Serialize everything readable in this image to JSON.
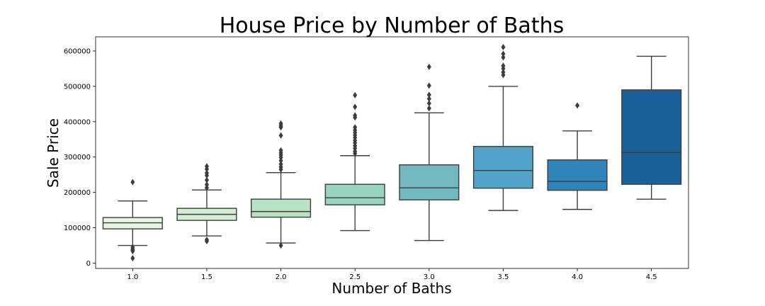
{
  "chart_data": {
    "type": "box",
    "title": "House Price by Number of Baths",
    "xlabel": "Number of Baths",
    "ylabel": "Sale Price",
    "ylim": [
      -15000,
      640000
    ],
    "yticks": [
      0,
      100000,
      200000,
      300000,
      400000,
      500000,
      600000
    ],
    "ytick_labels": [
      "0",
      "100000",
      "200000",
      "300000",
      "400000",
      "500000",
      "600000"
    ],
    "grid": false,
    "categories": [
      "1.0",
      "1.5",
      "2.0",
      "2.5",
      "3.0",
      "3.5",
      "4.0",
      "4.5"
    ],
    "boxes": [
      {
        "category": "1.0",
        "color": "#e8f5e3",
        "whisker_low": 50000,
        "q1": 97000,
        "median": 114000,
        "q3": 129000,
        "whisker_high": 176000,
        "outliers": [
          229000,
          45000,
          40000,
          37000,
          34000,
          14000
        ]
      },
      {
        "category": "1.5",
        "color": "#d4eed4",
        "whisker_low": 77000,
        "q1": 121000,
        "median": 138000,
        "q3": 155000,
        "whisker_high": 207000,
        "outliers": [
          274000,
          266000,
          255000,
          248000,
          235000,
          222000,
          213000,
          66000,
          62000
        ]
      },
      {
        "category": "2.0",
        "color": "#b9e3c5",
        "whisker_low": 57000,
        "q1": 130000,
        "median": 146000,
        "q3": 181000,
        "whisker_high": 256000,
        "outliers": [
          395000,
          389000,
          384000,
          361000,
          319000,
          312000,
          306000,
          299000,
          290000,
          280000,
          272000,
          265000,
          50000
        ]
      },
      {
        "category": "2.5",
        "color": "#97d4c0",
        "whisker_low": 92000,
        "q1": 165000,
        "median": 185000,
        "q3": 223000,
        "whisker_high": 304000,
        "outliers": [
          475000,
          442000,
          418000,
          412000,
          384000,
          376000,
          369000,
          362000,
          355000,
          347000,
          340000,
          332000,
          325000,
          316000,
          310000
        ]
      },
      {
        "category": "3.0",
        "color": "#73b9c1",
        "whisker_low": 64000,
        "q1": 179000,
        "median": 213000,
        "q3": 278000,
        "whisker_high": 425000,
        "outliers": [
          555000,
          502000,
          476000,
          465000,
          452000,
          438000
        ]
      },
      {
        "category": "3.5",
        "color": "#52a3c9",
        "whisker_low": 149000,
        "q1": 212000,
        "median": 262000,
        "q3": 330000,
        "whisker_high": 500000,
        "outliers": [
          611000,
          592000,
          582000,
          558000,
          550000,
          540000,
          532000
        ]
      },
      {
        "category": "4.0",
        "color": "#2f85bb",
        "whisker_low": 152000,
        "q1": 206000,
        "median": 231000,
        "q3": 292000,
        "whisker_high": 374000,
        "outliers": [
          446000
        ]
      },
      {
        "category": "4.5",
        "color": "#1b6199",
        "whisker_low": 181000,
        "q1": 223000,
        "median": 313000,
        "q3": 490000,
        "whisker_high": 585000,
        "outliers": []
      }
    ]
  }
}
